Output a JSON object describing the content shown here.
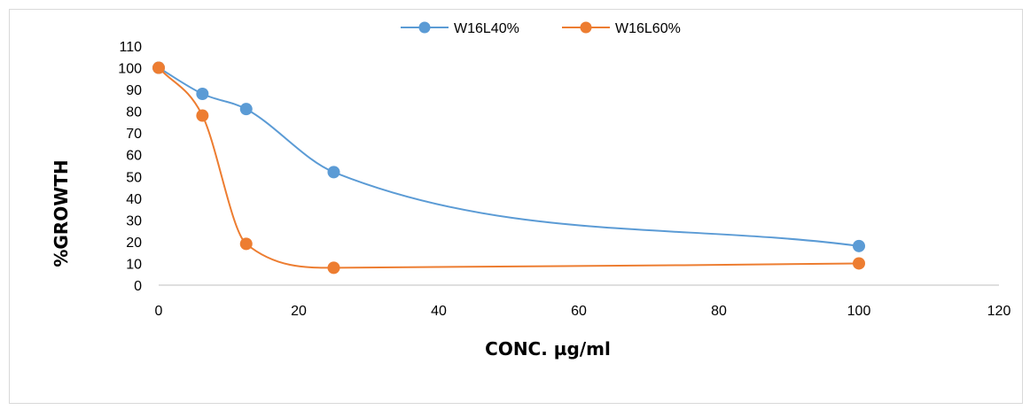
{
  "chart_data": {
    "type": "scatter",
    "title": "",
    "xlabel": "CONC. µg/ml",
    "ylabel": "%GROWTH",
    "xlim": [
      0,
      120
    ],
    "ylim": [
      0,
      110
    ],
    "x_ticks": [
      0,
      20,
      40,
      60,
      80,
      100,
      120
    ],
    "y_ticks": [
      0,
      10,
      20,
      30,
      40,
      50,
      60,
      70,
      80,
      90,
      100,
      110
    ],
    "grid": false,
    "legend_position": "top-center",
    "smooth_lines": true,
    "series": [
      {
        "name": "W16L40%",
        "color": "#5b9bd5",
        "x": [
          0,
          6.25,
          12.5,
          25,
          100
        ],
        "y": [
          100,
          88,
          81,
          52,
          18
        ]
      },
      {
        "name": "W16L60%",
        "color": "#ed7d31",
        "x": [
          0,
          6.25,
          12.5,
          25,
          100
        ],
        "y": [
          100,
          78,
          19,
          8,
          10
        ]
      }
    ]
  }
}
